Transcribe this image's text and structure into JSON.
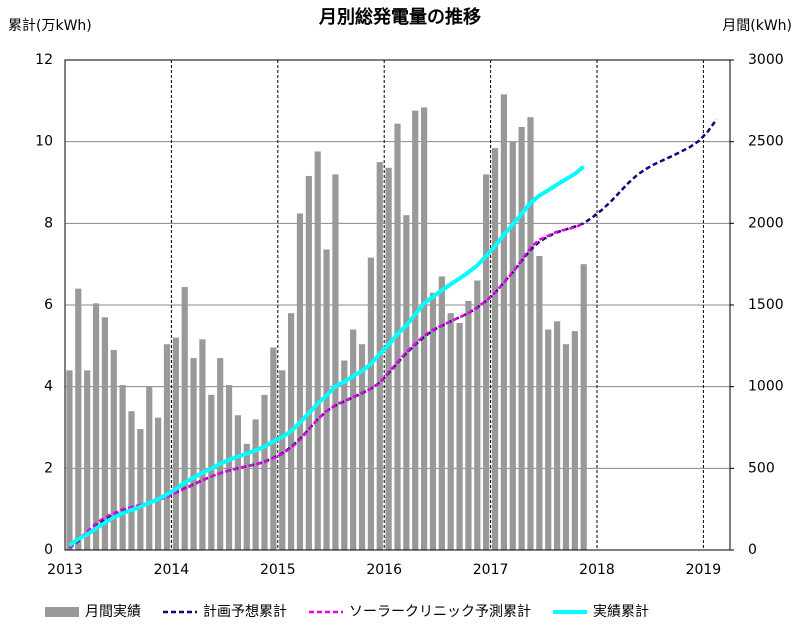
{
  "chart_data": {
    "type": "combo",
    "title": "月別総発電量の推移",
    "y_label": "累計(万kWh)",
    "y2_label": "月間(kWh)",
    "categories": [
      "2013",
      null,
      null,
      null,
      null,
      null,
      null,
      null,
      null,
      null,
      null,
      null,
      "2014",
      null,
      null,
      null,
      null,
      null,
      null,
      null,
      null,
      null,
      null,
      null,
      "2015",
      null,
      null,
      null,
      null,
      null,
      null,
      null,
      null,
      null,
      null,
      null,
      "2016",
      null,
      null,
      null,
      null,
      null,
      null,
      null,
      null,
      null,
      null,
      null,
      "2017",
      null,
      null,
      null,
      null,
      null,
      null,
      null,
      null,
      null,
      null,
      null,
      "2018",
      null,
      null,
      null,
      null,
      null,
      null,
      null,
      null,
      null,
      null,
      null,
      "2019",
      null,
      null
    ],
    "ylim": [
      0,
      12
    ],
    "yticks": [
      0,
      2,
      4,
      6,
      8,
      10,
      12
    ],
    "y2lim": [
      0,
      3000
    ],
    "y2ticks": [
      0,
      500,
      1000,
      1500,
      2000,
      2500,
      3000
    ],
    "grid": true,
    "legend": "bottom",
    "series": [
      {
        "name": "月間実績",
        "type": "bar",
        "axis": "y2",
        "color": "#999999",
        "values": [
          1100,
          1600,
          1100,
          1510,
          1425,
          1225,
          1010,
          850,
          740,
          1000,
          810,
          1260,
          1300,
          1610,
          1175,
          1290,
          950,
          1175,
          1010,
          825,
          650,
          800,
          950,
          1240,
          1100,
          1450,
          2060,
          2290,
          2440,
          1840,
          2300,
          1160,
          1350,
          1260,
          1790,
          2375,
          2340,
          2610,
          2050,
          2690,
          2710,
          1575,
          1675,
          1450,
          1390,
          1525,
          1650,
          2300,
          2460,
          2790,
          2500,
          2590,
          2650,
          1800,
          1350,
          1400,
          1260,
          1340,
          1750,
          null,
          null,
          null,
          null,
          null,
          null,
          null,
          null,
          null,
          null,
          null,
          null,
          null,
          null,
          null,
          null
        ]
      },
      {
        "name": "計画予想累計",
        "type": "line",
        "line_style": "dashed",
        "color": "#0a0a78",
        "values": [
          0.05,
          0.22,
          0.42,
          0.6,
          0.75,
          0.87,
          0.97,
          1.04,
          1.1,
          1.16,
          1.23,
          1.31,
          1.41,
          1.51,
          1.61,
          1.71,
          1.8,
          1.88,
          1.95,
          2.0,
          2.05,
          2.1,
          2.16,
          2.26,
          2.37,
          2.52,
          2.72,
          2.96,
          3.2,
          3.4,
          3.54,
          3.64,
          3.74,
          3.84,
          3.95,
          4.1,
          4.33,
          4.58,
          4.82,
          5.03,
          5.22,
          5.38,
          5.49,
          5.6,
          5.7,
          5.8,
          5.94,
          6.1,
          6.3,
          6.55,
          6.8,
          7.08,
          7.35,
          7.55,
          7.68,
          7.78,
          7.85,
          7.92,
          8.0,
          8.15,
          8.32,
          8.52,
          8.75,
          8.98,
          9.18,
          9.33,
          9.45,
          9.55,
          9.65,
          9.76,
          9.87,
          10.02,
          10.25,
          10.55,
          null
        ]
      },
      {
        "name": "ソーラークリニック予測累計",
        "type": "line",
        "line_style": "dashed",
        "color": "#e600e6",
        "values": [
          0.05,
          0.25,
          0.45,
          0.65,
          0.8,
          0.9,
          1.0,
          1.05,
          1.1,
          1.15,
          1.22,
          1.3,
          1.4,
          1.5,
          1.6,
          1.7,
          1.8,
          1.88,
          1.95,
          2.0,
          2.05,
          2.1,
          2.15,
          2.25,
          2.35,
          2.5,
          2.7,
          2.95,
          3.2,
          3.4,
          3.55,
          3.65,
          3.75,
          3.85,
          3.95,
          4.1,
          4.35,
          4.6,
          4.85,
          5.05,
          5.25,
          5.4,
          5.5,
          5.6,
          5.7,
          5.8,
          5.95,
          6.1,
          6.3,
          6.55,
          6.8,
          7.1,
          7.4,
          7.6,
          7.7,
          7.8,
          7.85,
          7.9,
          8.0,
          null,
          null,
          null,
          null,
          null,
          null,
          null,
          null,
          null,
          null,
          null,
          null,
          null,
          null,
          null,
          null
        ]
      },
      {
        "name": "実績累計",
        "type": "line",
        "line_style": "solid",
        "color": "#00ffff",
        "values": [
          0.11,
          0.27,
          0.38,
          0.53,
          0.67,
          0.8,
          0.9,
          0.98,
          1.06,
          1.16,
          1.24,
          1.36,
          1.49,
          1.65,
          1.77,
          1.9,
          1.99,
          2.11,
          2.21,
          2.29,
          2.36,
          2.44,
          2.53,
          2.66,
          2.77,
          2.91,
          3.12,
          3.35,
          3.59,
          3.78,
          4.01,
          4.12,
          4.26,
          4.38,
          4.56,
          4.8,
          5.03,
          5.29,
          5.5,
          5.77,
          6.04,
          6.2,
          6.36,
          6.51,
          6.65,
          6.8,
          6.97,
          7.2,
          7.44,
          7.72,
          7.97,
          8.23,
          8.5,
          8.68,
          8.81,
          8.95,
          9.08,
          9.21,
          9.39,
          null,
          null,
          null,
          null,
          null,
          null,
          null,
          null,
          null,
          null,
          null,
          null,
          null,
          null,
          null,
          null
        ]
      }
    ]
  }
}
